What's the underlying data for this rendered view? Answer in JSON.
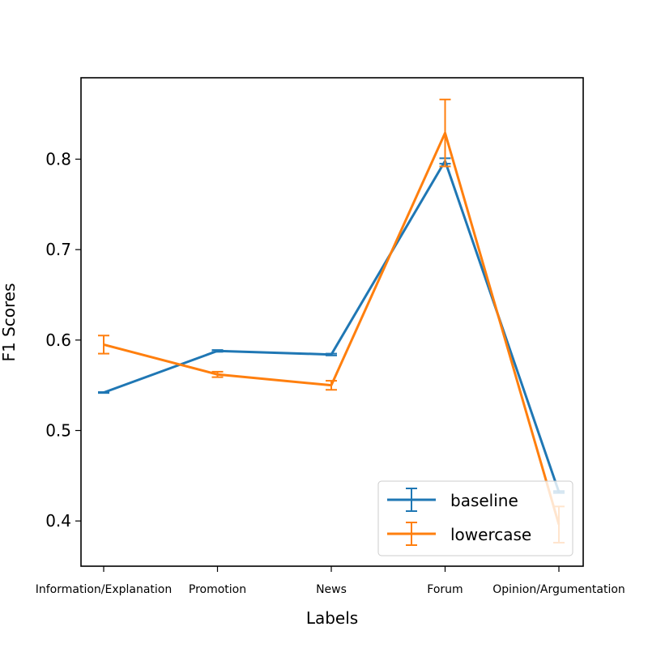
{
  "chart_data": {
    "type": "line",
    "title": "",
    "xlabel": "Labels",
    "ylabel": "F1 Scores",
    "categories": [
      "Information/Explanation",
      "Promotion",
      "News",
      "Forum",
      "Opinion/Argumentation"
    ],
    "ylim": [
      0.35,
      0.89
    ],
    "yticks": [
      0.4,
      0.5,
      0.6,
      0.7,
      0.8
    ],
    "ytick_labels": [
      "0.4",
      "0.5",
      "0.6",
      "0.7",
      "0.8"
    ],
    "grid": false,
    "legend_position": "lower-right",
    "series": [
      {
        "name": "baseline",
        "color": "#1f77b4",
        "values": [
          0.542,
          0.588,
          0.584,
          0.798,
          0.432
        ],
        "errors": [
          0.0005,
          0.001,
          0.001,
          0.003,
          0.001
        ]
      },
      {
        "name": "lowercase",
        "color": "#ff7f0e",
        "values": [
          0.595,
          0.562,
          0.55,
          0.829,
          0.396
        ],
        "errors": [
          0.01,
          0.003,
          0.005,
          0.037,
          0.02
        ]
      }
    ]
  }
}
